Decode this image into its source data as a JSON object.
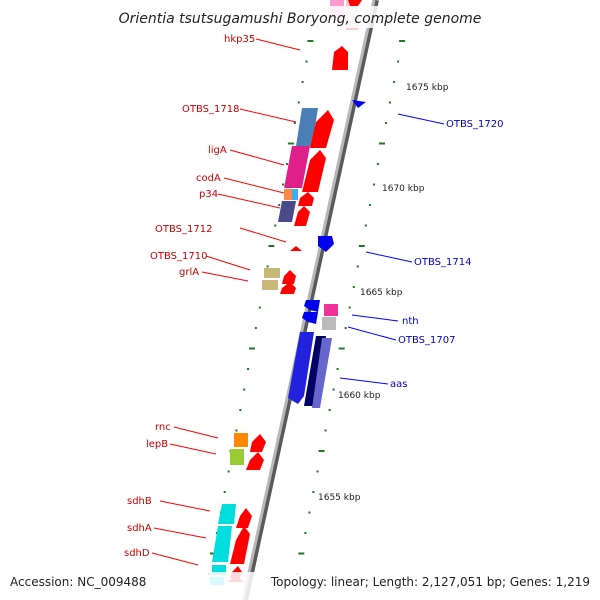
{
  "map": {
    "title": "Orientia tsutsugamushi Boryong, complete genome",
    "accession": "Accession: NC_009488",
    "summary": "Topology: linear; Length: 2,127,051 bp; Genes: 1,219"
  },
  "colors": {
    "backbone": "#9a9a9a",
    "forward_label": "#cc0000",
    "reverse_label": "#0000cc",
    "tick": "#227722"
  },
  "kbp_ticks": [
    "1675 kbp",
    "1670 kbp",
    "1665 kbp",
    "1660 kbp",
    "1655 kbp"
  ],
  "forward_labels": [
    "hkp35",
    "OTBS_1718",
    "ligA",
    "codA",
    "p34",
    "OTBS_1712",
    "OTBS_1710",
    "grlA",
    "rnc",
    "lepB",
    "sdhB",
    "sdhA",
    "sdhD"
  ],
  "reverse_labels": [
    "OTBS_1720",
    "OTBS_1714",
    "nth",
    "OTBS_1707",
    "aas"
  ]
}
